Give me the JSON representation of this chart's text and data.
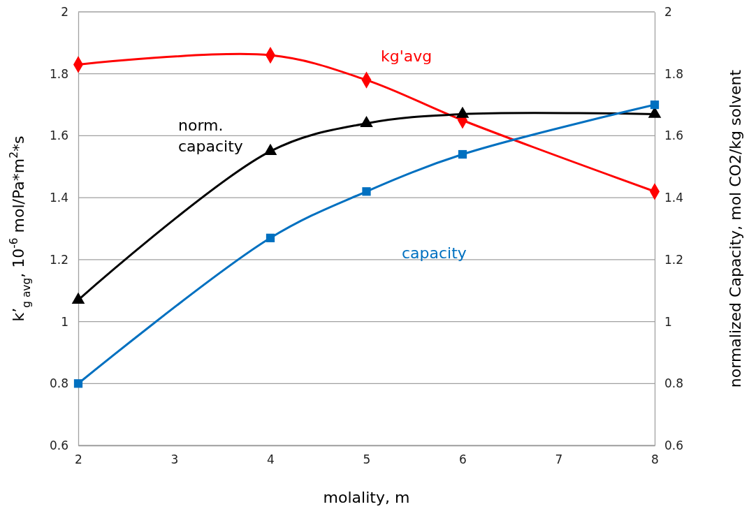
{
  "chart_data": {
    "type": "line",
    "xlabel": "molality, m",
    "ylabel": "k’$_{g avg}$, 10$^{-6}$ mol/Pa*m$^{2}$*s",
    "y2label": "normalized Capacity,  mol CO2/kg solvent",
    "x": [
      2,
      4,
      5,
      6,
      8
    ],
    "series": [
      {
        "name": "kg'avg",
        "color": "#ff0000",
        "marker": "diamond",
        "values": [
          1.83,
          1.86,
          1.78,
          1.65,
          1.42
        ]
      },
      {
        "name": "norm. capacity",
        "color": "#000000",
        "marker": "triangle",
        "values": [
          1.07,
          1.55,
          1.64,
          1.67,
          1.67
        ]
      },
      {
        "name": "capacity",
        "color": "#0070c0",
        "marker": "square",
        "values": [
          0.8,
          1.27,
          1.42,
          1.54,
          1.7
        ]
      }
    ],
    "xlim": [
      2,
      8
    ],
    "xticks": [
      2,
      3,
      4,
      5,
      6,
      7,
      8
    ],
    "ylim": [
      0.6,
      2
    ],
    "yticks": [
      0.6,
      0.8,
      1,
      1.2,
      1.4,
      1.6,
      1.8,
      2
    ],
    "y2lim": [
      0.6,
      2
    ],
    "y2ticks": [
      0.6,
      0.8,
      1,
      1.2,
      1.4,
      1.6,
      1.8,
      2
    ],
    "grid": "y",
    "line_style": "solid"
  }
}
